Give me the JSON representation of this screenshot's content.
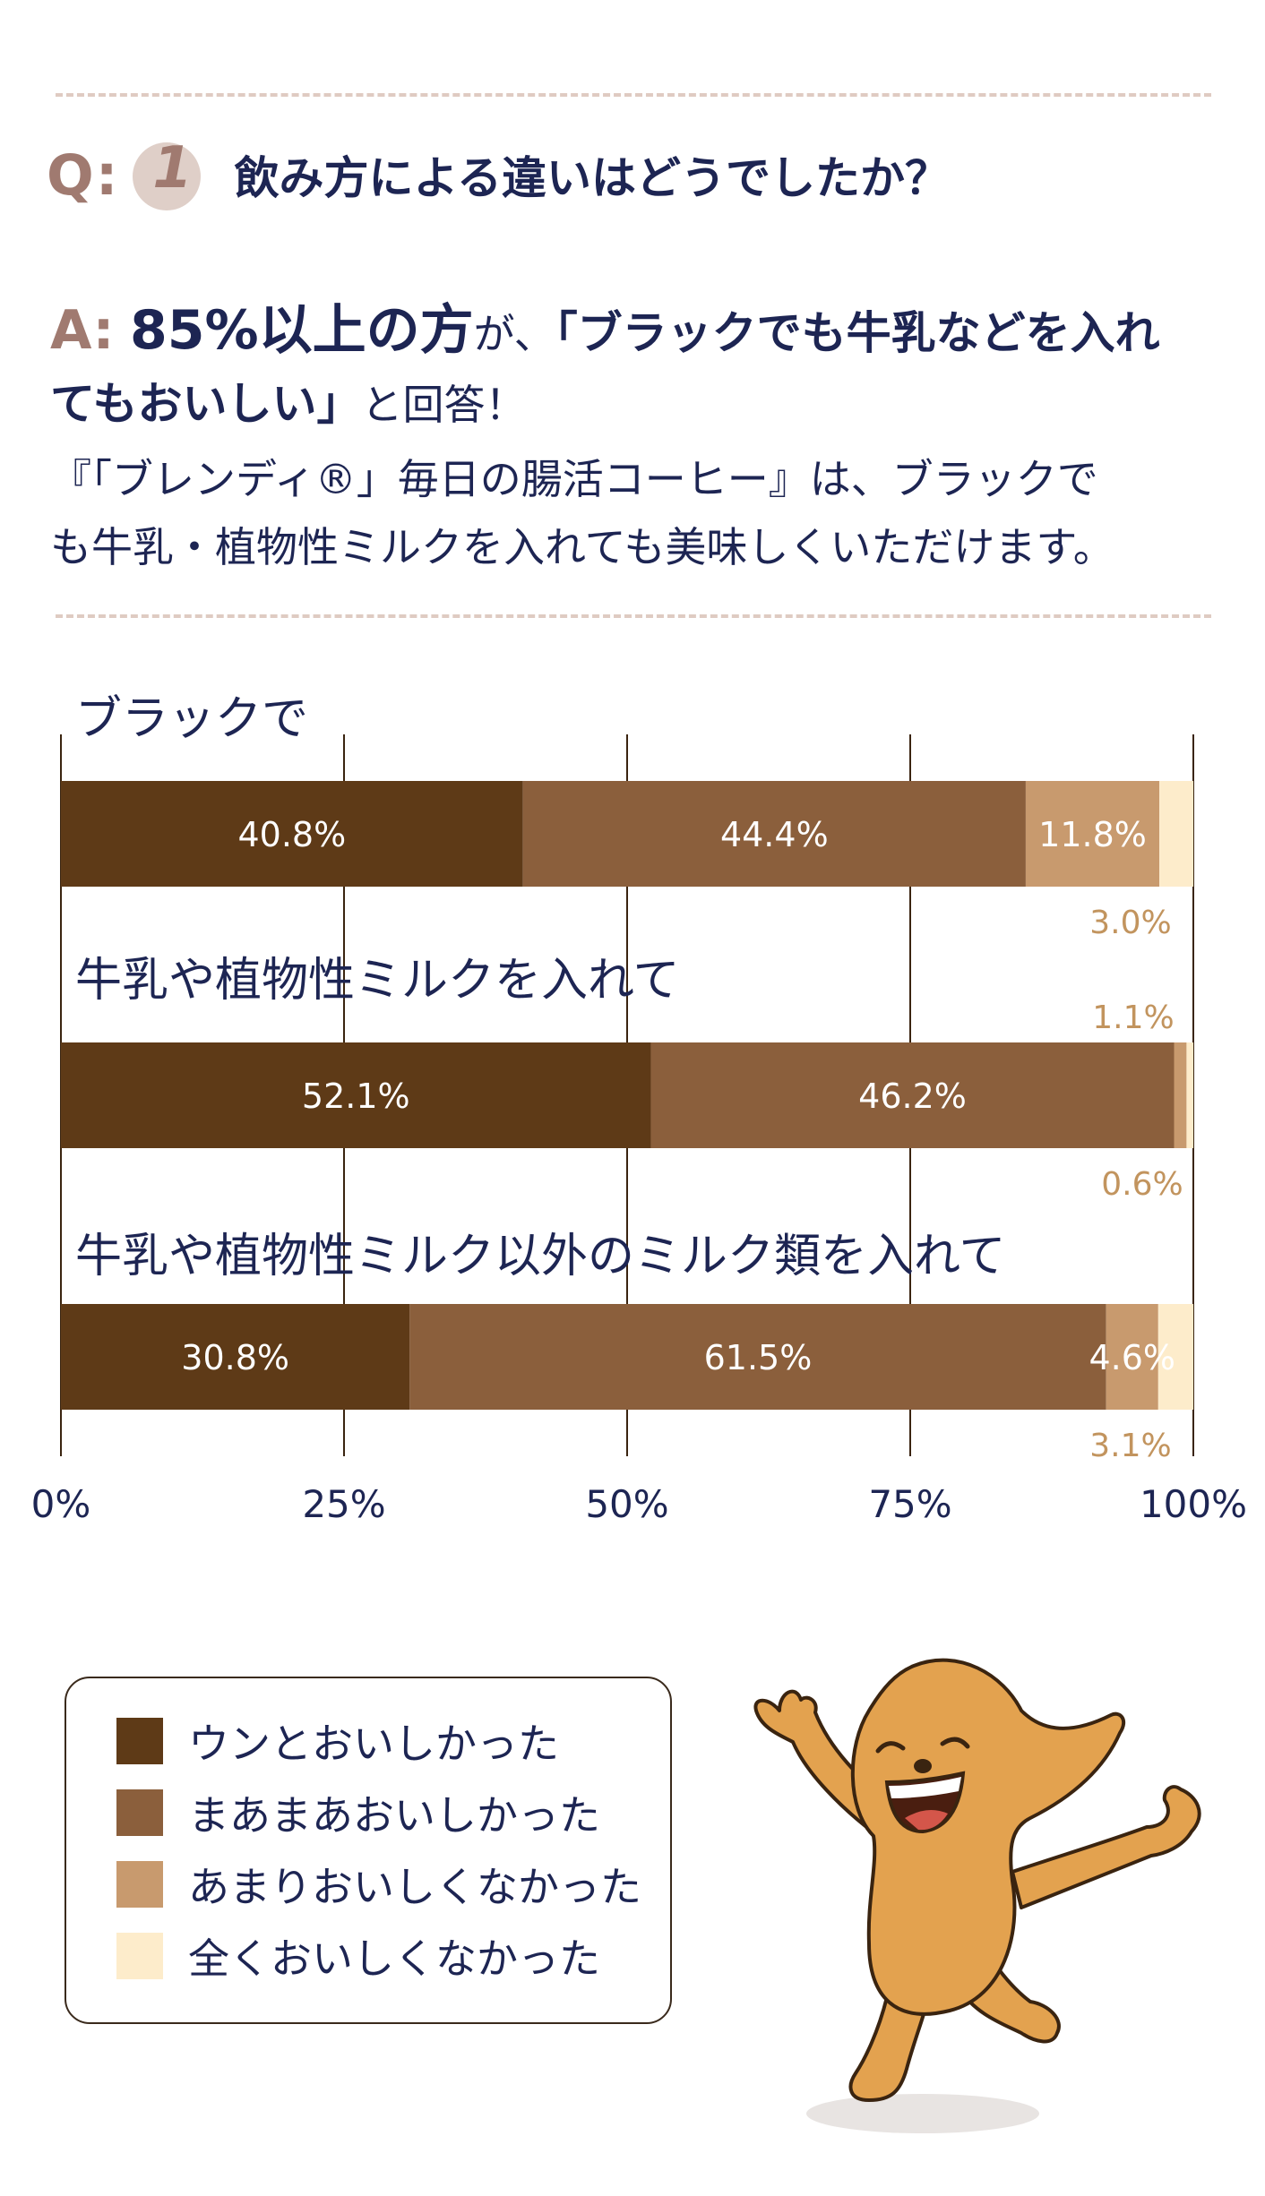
{
  "question": {
    "prefix": "Q:",
    "number": "1",
    "text": "飲み方による違いはどうでしたか？"
  },
  "answer": {
    "prefix": "A:",
    "highlight": "85%以上の方",
    "connector": "が、",
    "quote_line1": "「ブラックでも牛乳などを入れ",
    "quote_line2": "てもおいしい」",
    "after_quote": "と回答！",
    "body_line1": "『「ブレンディ®」毎日の腸活コーヒー』は、ブラックで",
    "body_line2": "も牛乳・植物性ミルクを入れても美味しくいただけます。"
  },
  "colors": {
    "very_good": "#5e3a17",
    "fairly_good": "#8b5f3c",
    "not_very_good": "#c89a6e",
    "not_at_all": "#fdeccb",
    "navy_text": "#1d2553",
    "question_brown": "#a07a70",
    "small_label": "#c2945e",
    "mascot_body": "#e3a24f"
  },
  "chart_data": {
    "type": "bar",
    "orientation": "horizontal-stacked",
    "categories": [
      "ブラックで",
      "牛乳や植物性ミルクを入れて",
      "牛乳や植物性ミルク以外のミルク類を入れて"
    ],
    "series": [
      {
        "name": "ウンとおいしかった",
        "values": [
          40.8,
          52.1,
          30.8
        ],
        "labels": [
          "40.8%",
          "52.1%",
          "30.8%"
        ]
      },
      {
        "name": "まあまあおいしかった",
        "values": [
          44.4,
          46.2,
          61.5
        ],
        "labels": [
          "44.4%",
          "46.2%",
          "61.5%"
        ]
      },
      {
        "name": "あまりおいしくなかった",
        "values": [
          11.8,
          1.1,
          4.6
        ],
        "labels": [
          "11.8%",
          "1.1%",
          "4.6%"
        ]
      },
      {
        "name": "全くおいしくなかった",
        "values": [
          3.0,
          0.6,
          3.1
        ],
        "labels": [
          "3.0%",
          "0.6%",
          "3.1%"
        ]
      }
    ],
    "xlim": [
      0,
      100
    ],
    "xticks": [
      "0%",
      "25%",
      "50%",
      "75%",
      "100%"
    ],
    "xtick_values": [
      0,
      25,
      50,
      75,
      100
    ],
    "grid": true,
    "legend_position": "bottom-left"
  }
}
